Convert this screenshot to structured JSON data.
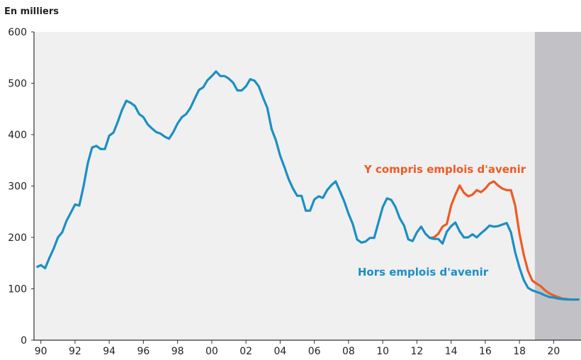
{
  "chart_data": {
    "type": "line",
    "y_label": "En milliers",
    "x": [
      1989.75,
      1990,
      1990.25,
      1990.5,
      1990.75,
      1991,
      1991.25,
      1991.5,
      1991.75,
      1992,
      1992.25,
      1992.5,
      1992.75,
      1993,
      1993.25,
      1993.5,
      1993.75,
      1994,
      1994.25,
      1994.5,
      1994.75,
      1995,
      1995.25,
      1995.5,
      1995.75,
      1996,
      1996.25,
      1996.5,
      1996.75,
      1997,
      1997.25,
      1997.5,
      1997.75,
      1998,
      1998.25,
      1998.5,
      1998.75,
      1999,
      1999.25,
      1999.5,
      1999.75,
      2000,
      2000.25,
      2000.5,
      2000.75,
      2001,
      2001.25,
      2001.5,
      2001.75,
      2002,
      2002.25,
      2002.5,
      2002.75,
      2003,
      2003.25,
      2003.5,
      2003.75,
      2004,
      2004.25,
      2004.5,
      2004.75,
      2005,
      2005.25,
      2005.5,
      2005.75,
      2006,
      2006.25,
      2006.5,
      2006.75,
      2007,
      2007.25,
      2007.5,
      2007.75,
      2008,
      2008.25,
      2008.5,
      2008.75,
      2009,
      2009.25,
      2009.5,
      2009.75,
      2010,
      2010.25,
      2010.5,
      2010.75,
      2011,
      2011.25,
      2011.5,
      2011.75,
      2012,
      2012.25,
      2012.5,
      2012.75,
      2013,
      2013.25,
      2013.5,
      2013.75,
      2014,
      2014.25,
      2014.5,
      2014.75,
      2015,
      2015.25,
      2015.5,
      2015.75,
      2016,
      2016.25,
      2016.5,
      2016.75,
      2017,
      2017.25,
      2017.5,
      2017.75,
      2018,
      2018.25,
      2018.5,
      2018.75,
      2019,
      2019.25,
      2019.5,
      2019.75,
      2020,
      2020.25,
      2020.5,
      2020.75,
      2021,
      2021.25,
      2021.5
    ],
    "series": [
      {
        "name": "Y compris emplois d'avenir",
        "color": "#ee5a24",
        "values": [
          null,
          null,
          null,
          null,
          null,
          null,
          null,
          null,
          null,
          null,
          null,
          null,
          null,
          null,
          null,
          null,
          null,
          null,
          null,
          null,
          null,
          null,
          null,
          null,
          null,
          null,
          null,
          null,
          null,
          null,
          null,
          null,
          null,
          null,
          null,
          null,
          null,
          null,
          null,
          null,
          null,
          null,
          null,
          null,
          null,
          null,
          null,
          null,
          null,
          null,
          null,
          null,
          null,
          null,
          null,
          null,
          null,
          null,
          null,
          null,
          null,
          null,
          null,
          null,
          null,
          null,
          null,
          null,
          null,
          null,
          null,
          null,
          null,
          null,
          null,
          null,
          null,
          null,
          null,
          null,
          null,
          null,
          null,
          null,
          null,
          null,
          null,
          null,
          null,
          null,
          null,
          null,
          199,
          200,
          207,
          221,
          226,
          262,
          283,
          301,
          287,
          280,
          283,
          292,
          288,
          295,
          305,
          309,
          301,
          295,
          292,
          292,
          262,
          207,
          166,
          135,
          116,
          110,
          105,
          97,
          91,
          87,
          84,
          81,
          80,
          79,
          79,
          79
        ]
      },
      {
        "name": "Hors emplois d'avenir",
        "color": "#1b8fc4",
        "values": [
          142,
          146,
          140,
          160,
          178,
          200,
          210,
          232,
          248,
          264,
          262,
          300,
          345,
          375,
          378,
          372,
          372,
          398,
          404,
          425,
          448,
          466,
          462,
          456,
          440,
          434,
          420,
          412,
          405,
          402,
          396,
          392,
          405,
          422,
          434,
          440,
          452,
          470,
          487,
          492,
          506,
          514,
          523,
          514,
          514,
          509,
          501,
          486,
          486,
          494,
          508,
          505,
          494,
          472,
          452,
          411,
          389,
          359,
          337,
          313,
          295,
          281,
          281,
          252,
          252,
          274,
          280,
          277,
          292,
          302,
          309,
          290,
          270,
          246,
          226,
          196,
          190,
          192,
          199,
          199,
          229,
          259,
          276,
          273,
          259,
          237,
          223,
          196,
          193,
          210,
          221,
          207,
          199,
          197,
          197,
          188,
          211,
          222,
          229,
          212,
          200,
          200,
          206,
          200,
          208,
          215,
          223,
          221,
          222,
          225,
          228,
          210,
          171,
          141,
          117,
          102,
          97,
          94,
          91,
          87,
          84,
          83,
          81,
          80,
          79,
          79,
          79,
          79
        ]
      }
    ],
    "xlim": [
      1989.6,
      2021.6
    ],
    "xticks": [
      {
        "value": 1990,
        "label": "90"
      },
      {
        "value": 1992,
        "label": "92"
      },
      {
        "value": 1994,
        "label": "94"
      },
      {
        "value": 1996,
        "label": "96"
      },
      {
        "value": 1998,
        "label": "98"
      },
      {
        "value": 2000,
        "label": "00"
      },
      {
        "value": 2002,
        "label": "02"
      },
      {
        "value": 2004,
        "label": "04"
      },
      {
        "value": 2006,
        "label": "06"
      },
      {
        "value": 2008,
        "label": "08"
      },
      {
        "value": 2010,
        "label": "10"
      },
      {
        "value": 2012,
        "label": "12"
      },
      {
        "value": 2014,
        "label": "14"
      },
      {
        "value": 2016,
        "label": "16"
      },
      {
        "value": 2018,
        "label": "18"
      },
      {
        "value": 2020,
        "label": "20"
      }
    ],
    "ylim": [
      0,
      600
    ],
    "yticks": [
      0,
      100,
      200,
      300,
      400,
      500,
      600
    ],
    "shaded_from": 2018.9,
    "shade_color": "#c2c2c6",
    "background": "#f0f0f0"
  }
}
